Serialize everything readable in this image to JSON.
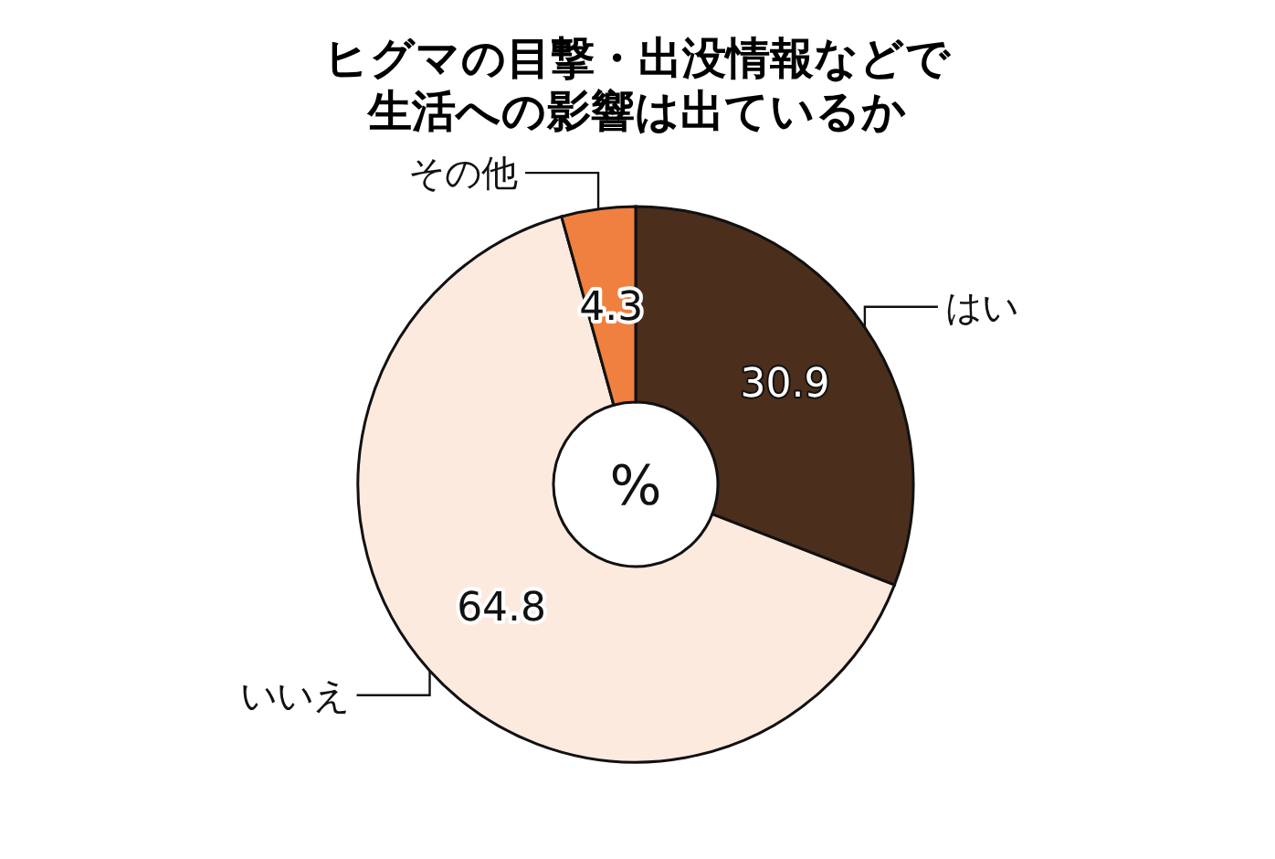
{
  "chart_data": {
    "type": "donut",
    "title": "ヒグマの目撃・出没情報などで生活への影響は出ているか",
    "categories": [
      "はい",
      "いいえ",
      "その他"
    ],
    "values": [
      30.9,
      64.8,
      4.3
    ],
    "colors": [
      "#4b2e1c",
      "#fdeadf",
      "#f0803f"
    ],
    "data_labels": true,
    "annotations": [
      "%"
    ]
  }
}
